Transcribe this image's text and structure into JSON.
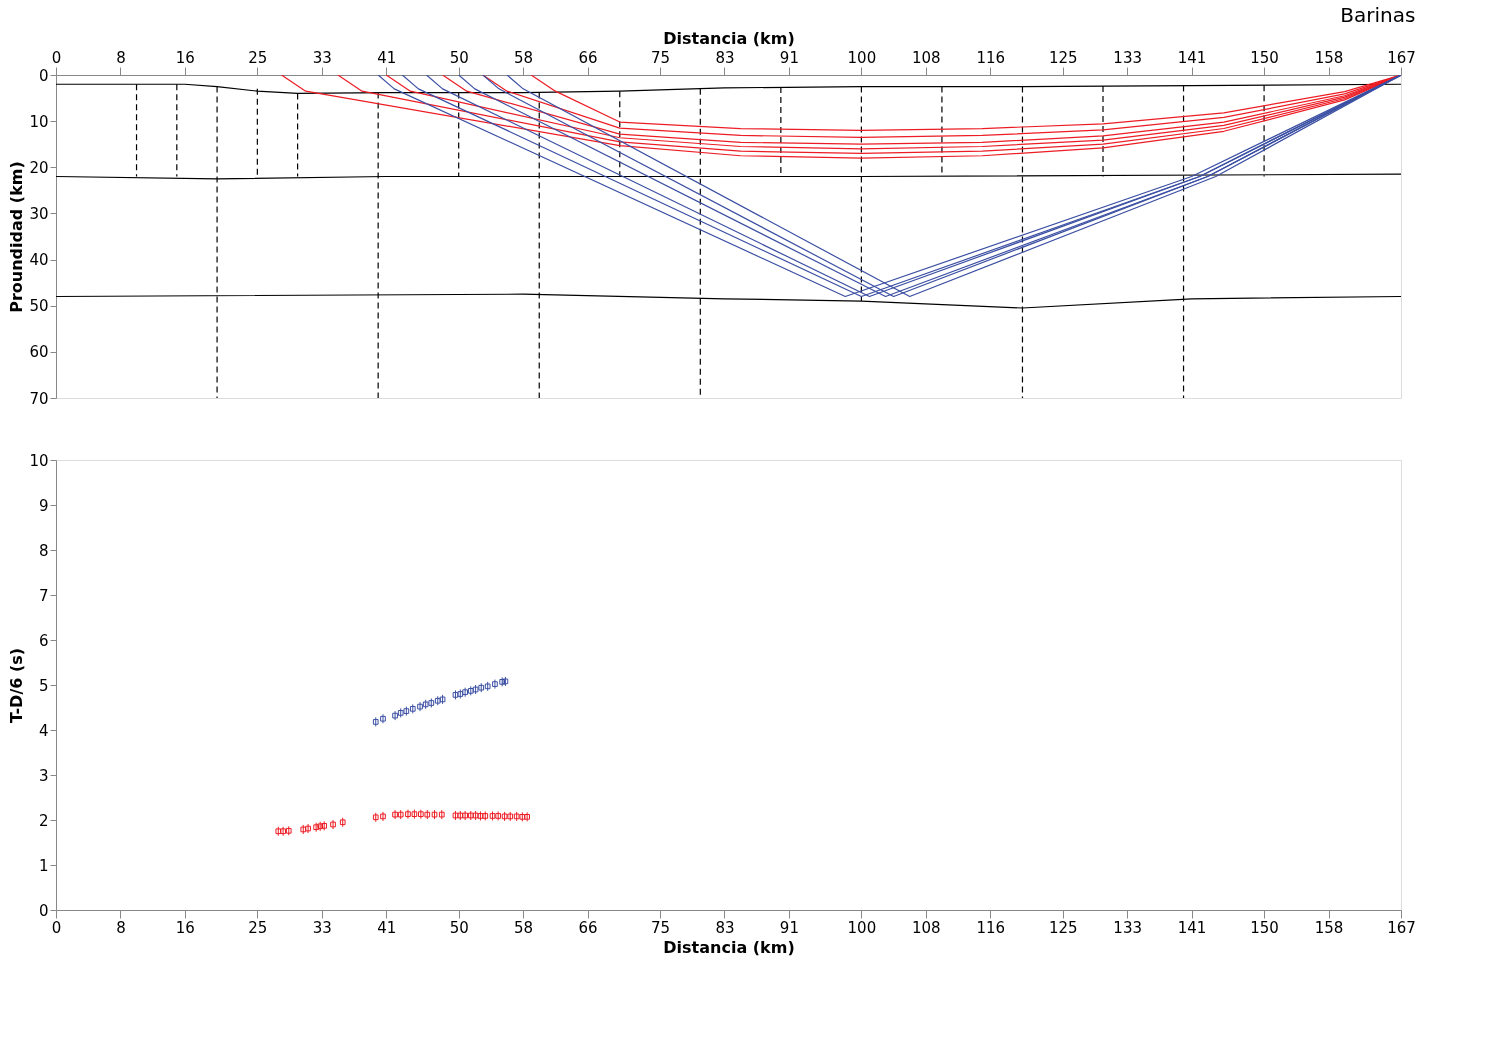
{
  "chart_data": [
    {
      "type": "line",
      "title": "Barinas",
      "ylabel": "Proundidad (km)",
      "xlabel": "Distancia (km)",
      "ylim": [
        70,
        0
      ],
      "yticks": [
        0,
        10,
        20,
        30,
        40,
        50,
        60,
        70
      ],
      "xlim": [
        0,
        167
      ],
      "xticks": [
        0,
        8,
        16,
        25,
        33,
        41,
        50,
        58,
        66,
        75,
        83,
        91,
        100,
        108,
        116,
        125,
        133,
        141,
        150,
        158,
        167
      ],
      "grid": false,
      "line_style": "solid",
      "series": [
        {
          "color": "#000000",
          "x": [
            0,
            16,
            20,
            25,
            30,
            41,
            58,
            70,
            83,
            100,
            120,
            141,
            167
          ],
          "values": [
            2,
            2,
            2.5,
            3.5,
            4,
            3.8,
            3.8,
            3.5,
            2.8,
            2.5,
            2.5,
            2.3,
            2
          ]
        },
        {
          "color": "#000000",
          "x": [
            0,
            20,
            41,
            100,
            167
          ],
          "values": [
            22,
            22.5,
            22,
            22,
            21.5
          ]
        },
        {
          "color": "#000000",
          "x": [
            0,
            58,
            83,
            100,
            120,
            141,
            167
          ],
          "values": [
            48,
            47.5,
            48.5,
            49,
            50.5,
            48.5,
            48
          ]
        },
        {
          "color": "#000000",
          "line_style": "dashed",
          "x": [
            10,
            10
          ],
          "values": [
            2,
            22
          ]
        },
        {
          "color": "#000000",
          "line_style": "dashed",
          "x": [
            15,
            15
          ],
          "values": [
            2,
            22
          ]
        },
        {
          "color": "#000000",
          "line_style": "dashed",
          "x": [
            20,
            20
          ],
          "values": [
            2.5,
            70
          ]
        },
        {
          "color": "#000000",
          "line_style": "dashed",
          "x": [
            25,
            25
          ],
          "values": [
            3,
            22
          ]
        },
        {
          "color": "#000000",
          "line_style": "dashed",
          "x": [
            30,
            30
          ],
          "values": [
            4,
            22
          ]
        },
        {
          "color": "#000000",
          "line_style": "dashed",
          "x": [
            40,
            40
          ],
          "values": [
            3.8,
            70
          ]
        },
        {
          "color": "#000000",
          "line_style": "dashed",
          "x": [
            50,
            50
          ],
          "values": [
            3.8,
            22
          ]
        },
        {
          "color": "#000000",
          "line_style": "dashed",
          "x": [
            60,
            60
          ],
          "values": [
            3.8,
            70
          ]
        },
        {
          "color": "#000000",
          "line_style": "dashed",
          "x": [
            70,
            70
          ],
          "values": [
            3.5,
            22
          ]
        },
        {
          "color": "#000000",
          "line_style": "dashed",
          "x": [
            80,
            80
          ],
          "values": [
            3,
            70
          ]
        },
        {
          "color": "#000000",
          "line_style": "dashed",
          "x": [
            90,
            90
          ],
          "values": [
            2.6,
            22
          ]
        },
        {
          "color": "#000000",
          "line_style": "dashed",
          "x": [
            100,
            100
          ],
          "values": [
            2.5,
            49
          ]
        },
        {
          "color": "#000000",
          "line_style": "dashed",
          "x": [
            110,
            110
          ],
          "values": [
            2.5,
            22
          ]
        },
        {
          "color": "#000000",
          "line_style": "dashed",
          "x": [
            120,
            120
          ],
          "values": [
            2.5,
            70
          ]
        },
        {
          "color": "#000000",
          "line_style": "dashed",
          "x": [
            130,
            130
          ],
          "values": [
            2.4,
            22
          ]
        },
        {
          "color": "#000000",
          "line_style": "dashed",
          "x": [
            140,
            140
          ],
          "values": [
            2.3,
            70
          ]
        },
        {
          "color": "#000000",
          "line_style": "dashed",
          "x": [
            150,
            150
          ],
          "values": [
            2.2,
            22
          ]
        },
        {
          "color": "#ed1c24",
          "x": [
            28,
            31,
            70,
            85,
            100,
            115,
            130,
            145,
            160,
            167
          ],
          "values": [
            0,
            3.5,
            15.3,
            17.5,
            18,
            17.5,
            15.8,
            12.2,
            5.4,
            0
          ]
        },
        {
          "color": "#ed1c24",
          "x": [
            35,
            38,
            70,
            85,
            100,
            115,
            130,
            145,
            160,
            167
          ],
          "values": [
            0,
            3.5,
            14.5,
            16.5,
            17,
            16.5,
            15,
            11.6,
            5.1,
            0
          ]
        },
        {
          "color": "#ed1c24",
          "x": [
            41,
            44,
            70,
            85,
            100,
            115,
            130,
            145,
            160,
            167
          ],
          "values": [
            0,
            3.5,
            13.6,
            15.5,
            16,
            15.5,
            14.1,
            10.9,
            4.8,
            0
          ]
        },
        {
          "color": "#ed1c24",
          "x": [
            48,
            51,
            70,
            85,
            100,
            115,
            130,
            145,
            160,
            167
          ],
          "values": [
            0,
            3.5,
            12.8,
            14.6,
            15,
            14.6,
            13.2,
            10.2,
            4.5,
            0
          ]
        },
        {
          "color": "#ed1c24",
          "x": [
            53,
            56,
            70,
            85,
            100,
            115,
            130,
            145,
            160,
            167
          ],
          "values": [
            0,
            3.5,
            11.5,
            13.1,
            13.5,
            13.1,
            11.9,
            9.2,
            4.1,
            0
          ]
        },
        {
          "color": "#ed1c24",
          "x": [
            59,
            62,
            70,
            85,
            100,
            115,
            130,
            145,
            160,
            167
          ],
          "values": [
            0,
            3.5,
            10.2,
            11.6,
            12,
            11.6,
            10.6,
            8.2,
            3.6,
            0
          ]
        },
        {
          "color": "#3b4fa3",
          "x": [
            40,
            42,
            98,
            141,
            167
          ],
          "values": [
            0,
            3,
            48,
            22,
            0
          ]
        },
        {
          "color": "#3b4fa3",
          "x": [
            43,
            45,
            100,
            142,
            167
          ],
          "values": [
            0,
            3,
            48,
            22,
            0
          ]
        },
        {
          "color": "#3b4fa3",
          "x": [
            46,
            48,
            101,
            142,
            167
          ],
          "values": [
            0,
            3,
            48,
            22,
            0
          ]
        },
        {
          "color": "#3b4fa3",
          "x": [
            50,
            52,
            103,
            143,
            167
          ],
          "values": [
            0,
            3,
            48,
            22,
            0
          ]
        },
        {
          "color": "#3b4fa3",
          "x": [
            53,
            55,
            104,
            143,
            167
          ],
          "values": [
            0,
            3,
            48,
            22,
            0
          ]
        },
        {
          "color": "#3b4fa3",
          "x": [
            56,
            58,
            106,
            144,
            167
          ],
          "values": [
            0,
            3,
            48,
            22,
            0
          ]
        }
      ]
    },
    {
      "type": "scatter",
      "xlabel": "Distancia (km)",
      "ylabel": "T-D/6 (s)",
      "ylim": [
        0,
        10
      ],
      "yticks": [
        0,
        1,
        2,
        3,
        4,
        5,
        6,
        7,
        8,
        9,
        10
      ],
      "xlim": [
        0,
        167
      ],
      "xticks": [
        0,
        8,
        16,
        25,
        33,
        41,
        50,
        58,
        66,
        75,
        83,
        91,
        100,
        108,
        116,
        125,
        133,
        141,
        150,
        158,
        167
      ],
      "grid": false,
      "marker": "square",
      "series": [
        {
          "color": "#ed1c24",
          "x": [
            27.6,
            28.2,
            28.9,
            30.7,
            31.3,
            32.3,
            32.8,
            33.3,
            34.4,
            35.6,
            39.7,
            40.6,
            42.1,
            42.8,
            43.7,
            44.5,
            45.3,
            46.1,
            47.0,
            47.9,
            49.6,
            50.2,
            50.8,
            51.5,
            52.1,
            52.7,
            53.3,
            54.2,
            54.9,
            55.7,
            56.4,
            57.2,
            57.9,
            58.5
          ],
          "values": [
            1.75,
            1.75,
            1.76,
            1.79,
            1.81,
            1.84,
            1.86,
            1.87,
            1.9,
            1.95,
            2.06,
            2.08,
            2.12,
            2.12,
            2.13,
            2.13,
            2.13,
            2.12,
            2.12,
            2.12,
            2.1,
            2.1,
            2.1,
            2.1,
            2.1,
            2.09,
            2.09,
            2.09,
            2.09,
            2.08,
            2.08,
            2.08,
            2.07,
            2.07
          ],
          "errors": [
            0.1,
            0.1,
            0.1,
            0.1,
            0.1,
            0.1,
            0.1,
            0.1,
            0.1,
            0.1,
            0.1,
            0.1,
            0.1,
            0.1,
            0.1,
            0.1,
            0.1,
            0.1,
            0.1,
            0.1,
            0.1,
            0.1,
            0.1,
            0.1,
            0.1,
            0.1,
            0.1,
            0.1,
            0.1,
            0.1,
            0.1,
            0.1,
            0.1,
            0.1
          ]
        },
        {
          "color": "#3b4fa3",
          "x": [
            39.7,
            40.6,
            42.1,
            42.8,
            43.5,
            44.3,
            45.2,
            45.9,
            46.6,
            47.4,
            48.0,
            49.6,
            50.2,
            50.8,
            51.5,
            52.1,
            52.8,
            53.6,
            54.5,
            55.4,
            55.8
          ],
          "values": [
            4.18,
            4.25,
            4.32,
            4.38,
            4.42,
            4.47,
            4.52,
            4.57,
            4.6,
            4.65,
            4.68,
            4.78,
            4.8,
            4.84,
            4.87,
            4.9,
            4.94,
            4.97,
            5.02,
            5.07,
            5.08
          ],
          "errors": [
            0.1,
            0.1,
            0.1,
            0.1,
            0.1,
            0.1,
            0.1,
            0.1,
            0.1,
            0.1,
            0.1,
            0.1,
            0.1,
            0.1,
            0.1,
            0.1,
            0.1,
            0.1,
            0.1,
            0.1,
            0.1
          ]
        }
      ]
    }
  ]
}
